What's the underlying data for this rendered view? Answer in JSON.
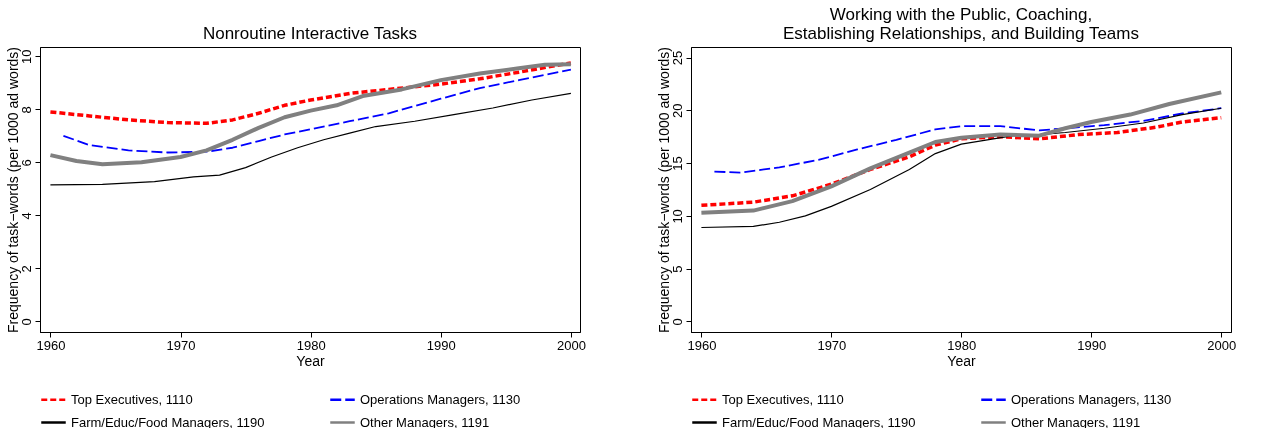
{
  "chart_data": [
    {
      "type": "line",
      "title": "Nonroutine Interactive Tasks",
      "xlabel": "Year",
      "ylabel": "Frequency of task−words (per 1000 ad words)",
      "xlim": [
        1959.2,
        2000.7
      ],
      "xticks": [
        1960,
        1970,
        1980,
        1990,
        2000
      ],
      "ylim": [
        -0.4,
        10.35
      ],
      "yticks": [
        0,
        2,
        4,
        6,
        8,
        10
      ],
      "grid": false,
      "legend": "bottom",
      "marker": "none",
      "series": [
        {
          "name": "Top Executives, 1110",
          "color": "#ff0000",
          "line_style": "dashed",
          "x": [
            1960,
            1963,
            1966,
            1969,
            1972,
            1974,
            1976,
            1978,
            1980,
            1983,
            1986,
            1990,
            1993,
            1996,
            2000
          ],
          "values": [
            7.9,
            7.75,
            7.6,
            7.5,
            7.47,
            7.6,
            7.85,
            8.15,
            8.35,
            8.6,
            8.75,
            8.95,
            9.15,
            9.4,
            9.75
          ]
        },
        {
          "name": "Operations Managers, 1130",
          "color": "#0000ff",
          "line_style": "dashed",
          "x": [
            1961,
            1963,
            1966,
            1969,
            1972,
            1974,
            1976,
            1978,
            1980,
            1983,
            1986,
            1990,
            1993,
            1996,
            2000
          ],
          "values": [
            7.0,
            6.65,
            6.45,
            6.37,
            6.4,
            6.55,
            6.8,
            7.05,
            7.25,
            7.55,
            7.85,
            8.4,
            8.8,
            9.1,
            9.5
          ]
        },
        {
          "name": "Farm/Educ/Food Managers, 1190",
          "color": "#000000",
          "line_style": "solid",
          "x": [
            1960,
            1964,
            1968,
            1971,
            1973,
            1975,
            1977,
            1979,
            1981,
            1983,
            1985,
            1988,
            1991,
            1994,
            1997,
            2000
          ],
          "values": [
            5.15,
            5.17,
            5.27,
            5.45,
            5.52,
            5.8,
            6.2,
            6.55,
            6.85,
            7.1,
            7.35,
            7.55,
            7.8,
            8.05,
            8.35,
            8.6
          ]
        },
        {
          "name": "Other Managers, 1191",
          "color": "#808080",
          "line_style": "solid",
          "x": [
            1960,
            1962,
            1964,
            1967,
            1970,
            1972,
            1974,
            1976,
            1978,
            1980,
            1982,
            1984,
            1987,
            1990,
            1993,
            1996,
            1998,
            2000
          ],
          "values": [
            6.27,
            6.05,
            5.93,
            6.0,
            6.2,
            6.45,
            6.85,
            7.3,
            7.7,
            7.95,
            8.15,
            8.5,
            8.75,
            9.1,
            9.35,
            9.55,
            9.68,
            9.7
          ]
        }
      ]
    },
    {
      "type": "line",
      "title": "Working with the Public, Coaching,\nEstablishing Relationships, and Building Teams",
      "xlabel": "Year",
      "ylabel": "Frequency of task−words (per 1000 ad words)",
      "xlim": [
        1959.2,
        2000.75
      ],
      "xticks": [
        1960,
        1970,
        1980,
        1990,
        2000
      ],
      "ylim": [
        -1.0,
        26.0
      ],
      "yticks": [
        0,
        5,
        10,
        15,
        20,
        25
      ],
      "grid": false,
      "legend": "bottom",
      "marker": "none",
      "series": [
        {
          "name": "Top Executives, 1110",
          "color": "#ff0000",
          "line_style": "dashed",
          "x": [
            1960,
            1964,
            1967,
            1970,
            1973,
            1976,
            1978,
            1980,
            1983,
            1986,
            1989,
            1992,
            1995,
            1997,
            2000
          ],
          "values": [
            11.0,
            11.3,
            11.9,
            13.0,
            14.4,
            15.6,
            16.7,
            17.3,
            17.5,
            17.3,
            17.7,
            17.9,
            18.4,
            18.9,
            19.3
          ]
        },
        {
          "name": "Operations Managers, 1130",
          "color": "#0000ff",
          "line_style": "dashed",
          "x": [
            1961,
            1963,
            1966,
            1969,
            1972,
            1975,
            1978,
            1980,
            1983,
            1986,
            1988,
            1991,
            1994,
            1997,
            2000
          ],
          "values": [
            14.2,
            14.1,
            14.6,
            15.3,
            16.3,
            17.2,
            18.2,
            18.5,
            18.5,
            18.1,
            18.3,
            18.6,
            19.0,
            19.7,
            20.2
          ]
        },
        {
          "name": "Farm/Educ/Food Managers, 1190",
          "color": "#000000",
          "line_style": "solid",
          "x": [
            1960,
            1964,
            1966,
            1968,
            1970,
            1973,
            1976,
            1978,
            1980,
            1982,
            1984,
            1986,
            1988,
            1991,
            1994,
            1997,
            2000
          ],
          "values": [
            8.9,
            9.0,
            9.4,
            10.0,
            10.9,
            12.5,
            14.4,
            15.9,
            16.8,
            17.2,
            17.6,
            17.7,
            17.9,
            18.3,
            18.8,
            19.6,
            20.2
          ]
        },
        {
          "name": "Other Managers, 1191",
          "color": "#808080",
          "line_style": "solid",
          "x": [
            1960,
            1964,
            1967,
            1970,
            1973,
            1976,
            1978,
            1980,
            1983,
            1986,
            1988,
            1990,
            1993,
            1996,
            2000
          ],
          "values": [
            10.3,
            10.5,
            11.4,
            12.8,
            14.5,
            16.0,
            17.0,
            17.4,
            17.7,
            17.6,
            18.3,
            18.9,
            19.6,
            20.6,
            21.7
          ]
        }
      ]
    }
  ]
}
